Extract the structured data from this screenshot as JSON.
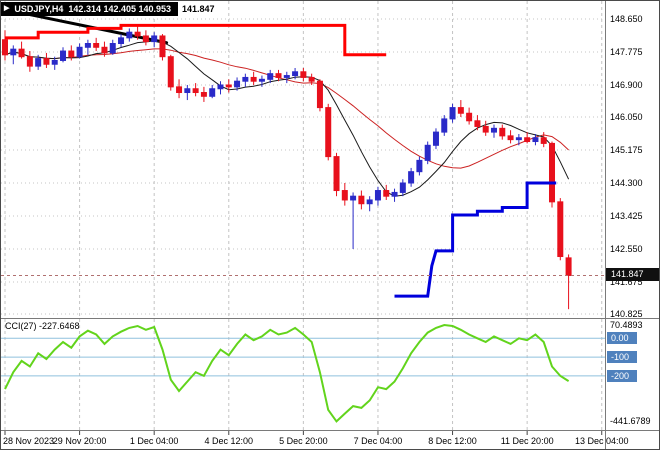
{
  "banner": {
    "logo_icon": "▶",
    "symbol": "USDJPY,H4",
    "ohlc": "142.314 142.405 140.953",
    "close": "141.847"
  },
  "chart_data": {
    "type": "candlestick",
    "symbol": "USDJPY",
    "timeframe": "H4",
    "open": "142.314",
    "high": "142.405",
    "low": "140.953",
    "close": "141.847",
    "current_price": "141.847",
    "price_ticks": [
      "148.650",
      "147.775",
      "146.900",
      "146.050",
      "145.175",
      "144.300",
      "143.425",
      "142.550",
      "141.675",
      "140.825"
    ],
    "x_labels": [
      {
        "text": "28 Nov 2023",
        "bar": 0
      },
      {
        "text": "29 Nov 20:00",
        "bar": 9
      },
      {
        "text": "1 Dec 04:00",
        "bar": 18
      },
      {
        "text": "4 Dec 12:00",
        "bar": 27
      },
      {
        "text": "5 Dec 20:00",
        "bar": 36
      },
      {
        "text": "7 Dec 04:00",
        "bar": 45
      },
      {
        "text": "8 Dec 12:00",
        "bar": 54
      },
      {
        "text": "11 Dec 20:00",
        "bar": 63
      },
      {
        "text": "13 Dec 04:00",
        "bar": 72
      }
    ],
    "candles": [
      [
        148.1,
        148.35,
        147.55,
        147.7
      ],
      [
        147.7,
        147.95,
        147.45,
        147.85
      ],
      [
        147.85,
        148.05,
        147.6,
        147.65
      ],
      [
        147.65,
        147.8,
        147.25,
        147.4
      ],
      [
        147.4,
        147.7,
        147.3,
        147.6
      ],
      [
        147.6,
        147.75,
        147.35,
        147.45
      ],
      [
        147.45,
        147.65,
        147.3,
        147.55
      ],
      [
        147.55,
        147.9,
        147.5,
        147.8
      ],
      [
        147.8,
        147.95,
        147.55,
        147.65
      ],
      [
        147.65,
        148.0,
        147.6,
        147.9
      ],
      [
        147.9,
        148.1,
        147.7,
        148.0
      ],
      [
        148.0,
        148.15,
        147.8,
        147.9
      ],
      [
        147.9,
        148.05,
        147.65,
        147.75
      ],
      [
        147.75,
        148.1,
        147.7,
        148.0
      ],
      [
        148.0,
        148.25,
        147.9,
        148.15
      ],
      [
        148.15,
        148.4,
        148.05,
        148.3
      ],
      [
        148.3,
        148.45,
        148.1,
        148.2
      ],
      [
        148.2,
        148.35,
        147.95,
        148.05
      ],
      [
        148.05,
        148.3,
        147.9,
        148.2
      ],
      [
        148.2,
        148.25,
        147.55,
        147.65
      ],
      [
        147.65,
        147.7,
        146.75,
        146.85
      ],
      [
        146.85,
        147.05,
        146.55,
        146.7
      ],
      [
        146.7,
        146.9,
        146.5,
        146.8
      ],
      [
        146.8,
        146.95,
        146.6,
        146.7
      ],
      [
        146.7,
        146.85,
        146.45,
        146.6
      ],
      [
        146.6,
        146.9,
        146.55,
        146.8
      ],
      [
        146.8,
        147.0,
        146.65,
        146.9
      ],
      [
        146.9,
        147.05,
        146.7,
        146.85
      ],
      [
        146.85,
        147.1,
        146.75,
        147.0
      ],
      [
        147.0,
        147.2,
        146.85,
        147.1
      ],
      [
        147.1,
        147.25,
        146.9,
        147.0
      ],
      [
        147.0,
        147.15,
        146.85,
        147.05
      ],
      [
        147.05,
        147.3,
        146.95,
        147.2
      ],
      [
        147.2,
        147.3,
        147.0,
        147.1
      ],
      [
        147.1,
        147.25,
        146.95,
        147.15
      ],
      [
        147.15,
        147.35,
        147.05,
        147.25
      ],
      [
        147.25,
        147.35,
        147.0,
        147.1
      ],
      [
        147.1,
        147.2,
        146.9,
        147.0
      ],
      [
        147.0,
        147.05,
        146.2,
        146.3
      ],
      [
        146.3,
        146.4,
        144.9,
        145.0
      ],
      [
        145.0,
        145.1,
        143.95,
        144.1
      ],
      [
        144.1,
        144.3,
        143.7,
        143.85
      ],
      [
        143.85,
        144.05,
        142.55,
        143.95
      ],
      [
        143.95,
        144.1,
        143.6,
        143.75
      ],
      [
        143.75,
        143.95,
        143.55,
        143.85
      ],
      [
        143.85,
        144.2,
        143.7,
        144.1
      ],
      [
        144.1,
        144.25,
        143.85,
        143.95
      ],
      [
        143.95,
        144.15,
        143.8,
        144.05
      ],
      [
        144.05,
        144.4,
        143.95,
        144.3
      ],
      [
        144.3,
        144.7,
        144.2,
        144.6
      ],
      [
        144.6,
        145.0,
        144.5,
        144.9
      ],
      [
        144.9,
        145.4,
        144.8,
        145.3
      ],
      [
        145.3,
        145.75,
        145.2,
        145.65
      ],
      [
        145.65,
        146.1,
        145.55,
        146.0
      ],
      [
        146.0,
        146.4,
        145.9,
        146.3
      ],
      [
        146.3,
        146.5,
        146.05,
        146.15
      ],
      [
        146.15,
        146.3,
        145.85,
        145.95
      ],
      [
        145.95,
        146.1,
        145.7,
        145.8
      ],
      [
        145.8,
        145.95,
        145.55,
        145.65
      ],
      [
        145.65,
        145.85,
        145.5,
        145.75
      ],
      [
        145.75,
        145.85,
        145.45,
        145.55
      ],
      [
        145.55,
        145.7,
        145.35,
        145.45
      ],
      [
        145.45,
        145.6,
        145.3,
        145.5
      ],
      [
        145.5,
        145.65,
        145.35,
        145.4
      ],
      [
        145.4,
        145.6,
        145.3,
        145.5
      ],
      [
        145.5,
        145.65,
        145.25,
        145.35
      ],
      [
        145.35,
        145.4,
        143.65,
        143.8
      ],
      [
        143.8,
        143.9,
        142.25,
        142.35
      ],
      [
        142.314,
        142.405,
        140.953,
        141.847
      ]
    ],
    "overlays": {
      "trendline": [
        [
          0.5,
          148.88
        ],
        [
          19.5,
          148.02
        ]
      ],
      "red_step": [
        [
          0,
          148.15
        ],
        [
          4,
          148.15
        ],
        [
          4,
          148.3
        ],
        [
          10,
          148.3
        ],
        [
          10,
          148.4
        ],
        [
          14,
          148.4
        ],
        [
          14,
          148.48
        ],
        [
          41,
          148.48
        ],
        [
          41,
          147.7
        ],
        [
          46,
          147.7
        ]
      ],
      "blue_step": [
        [
          47,
          141.3
        ],
        [
          51,
          141.3
        ],
        [
          51.5,
          142.1
        ],
        [
          52,
          142.5
        ],
        [
          54,
          142.5
        ],
        [
          54,
          143.45
        ],
        [
          57,
          143.45
        ],
        [
          57,
          143.55
        ],
        [
          60,
          143.55
        ],
        [
          60,
          143.65
        ],
        [
          63,
          143.65
        ],
        [
          63,
          144.3
        ],
        [
          66.5,
          144.3
        ]
      ],
      "ma_fast_period": 8,
      "ma_slow_period": 17
    },
    "cci": {
      "label": "CCI(27) -227.6468",
      "current": "-227.6468",
      "max_label": "70.4893",
      "min_label": "-441.6789",
      "levels": [
        {
          "text": "0.00",
          "value": 0
        },
        {
          "text": "-100",
          "value": -100
        },
        {
          "text": "-200",
          "value": -200
        }
      ],
      "values": [
        -270,
        -180,
        -120,
        -150,
        -80,
        -110,
        -60,
        -20,
        -50,
        10,
        40,
        20,
        -30,
        10,
        35,
        55,
        65,
        45,
        60,
        -60,
        -220,
        -280,
        -230,
        -180,
        -200,
        -120,
        -60,
        -90,
        -30,
        20,
        -10,
        10,
        45,
        20,
        30,
        55,
        20,
        -20,
        -180,
        -380,
        -441.6789,
        -400,
        -360,
        -370,
        -330,
        -260,
        -270,
        -230,
        -160,
        -80,
        -20,
        30,
        55,
        70.4893,
        65,
        45,
        20,
        0,
        -20,
        10,
        -10,
        -30,
        0,
        -10,
        20,
        -20,
        -150,
        -200,
        -227.6468
      ]
    },
    "colors": {
      "bull": "#2a2ac8",
      "bear": "#e8101c",
      "step_red": "#ff0000",
      "step_blue": "#0000dc",
      "ma_fast": "#1a1a1a",
      "ma_slow": "#cc2222",
      "cci": "#62d41c",
      "level_line": "#8fc1de",
      "level_box": "#4f81bd",
      "grid": "#c4c4c4"
    }
  }
}
